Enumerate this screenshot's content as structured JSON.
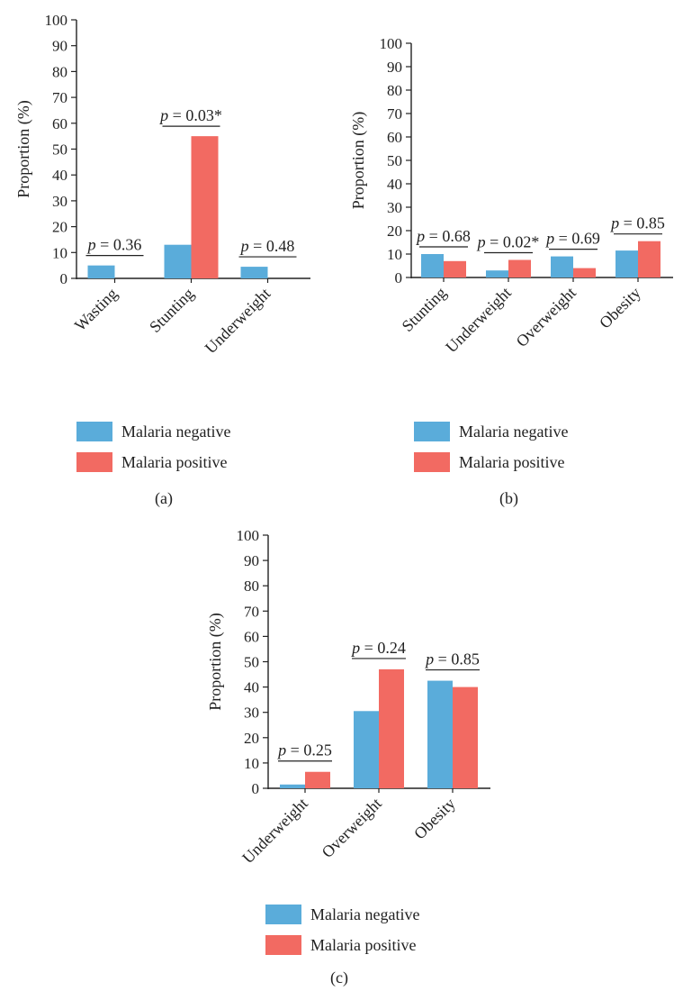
{
  "colors": {
    "negative": "#5aacda",
    "positive": "#f26a62",
    "axis": "#222222"
  },
  "chart_data": [
    {
      "type": "bar",
      "panel": "(a)",
      "ylabel": "Proportion (%)",
      "ylim": [
        0,
        100
      ],
      "yticks": [
        0,
        10,
        20,
        30,
        40,
        50,
        60,
        70,
        80,
        90,
        100
      ],
      "categories": [
        "Wasting",
        "Stunting",
        "Underweight"
      ],
      "series": [
        {
          "name": "Malaria negative",
          "values": [
            5,
            13,
            4.5
          ]
        },
        {
          "name": "Malaria positive",
          "values": [
            0,
            55,
            0
          ]
        }
      ],
      "annotations": [
        "p = 0.36",
        "p = 0.03*",
        "p = 0.48"
      ],
      "grid": false,
      "legend": "bottom"
    },
    {
      "type": "bar",
      "panel": "(b)",
      "ylabel": "Proportion (%)",
      "ylim": [
        0,
        100
      ],
      "yticks": [
        0,
        10,
        20,
        30,
        40,
        50,
        60,
        70,
        80,
        90,
        100
      ],
      "categories": [
        "Stunting",
        "Underweight",
        "Overweight",
        "Obesity"
      ],
      "series": [
        {
          "name": "Malaria negative",
          "values": [
            10,
            3,
            9,
            11.5
          ]
        },
        {
          "name": "Malaria positive",
          "values": [
            7,
            7.5,
            4,
            15.5
          ]
        }
      ],
      "annotations": [
        "p = 0.68",
        "p = 0.02*",
        "p = 0.69",
        "p = 0.85"
      ],
      "grid": false,
      "legend": "bottom"
    },
    {
      "type": "bar",
      "panel": "(c)",
      "ylabel": "Proportion (%)",
      "ylim": [
        0,
        100
      ],
      "yticks": [
        0,
        10,
        20,
        30,
        40,
        50,
        60,
        70,
        80,
        90,
        100
      ],
      "categories": [
        "Underweight",
        "Overweight",
        "Obesity"
      ],
      "series": [
        {
          "name": "Malaria negative",
          "values": [
            1.5,
            30.5,
            42.5
          ]
        },
        {
          "name": "Malaria positive",
          "values": [
            6.5,
            47,
            40
          ]
        }
      ],
      "annotations": [
        "p = 0.25",
        "p = 0.24",
        "p = 0.85"
      ],
      "grid": false,
      "legend": "bottom"
    }
  ]
}
